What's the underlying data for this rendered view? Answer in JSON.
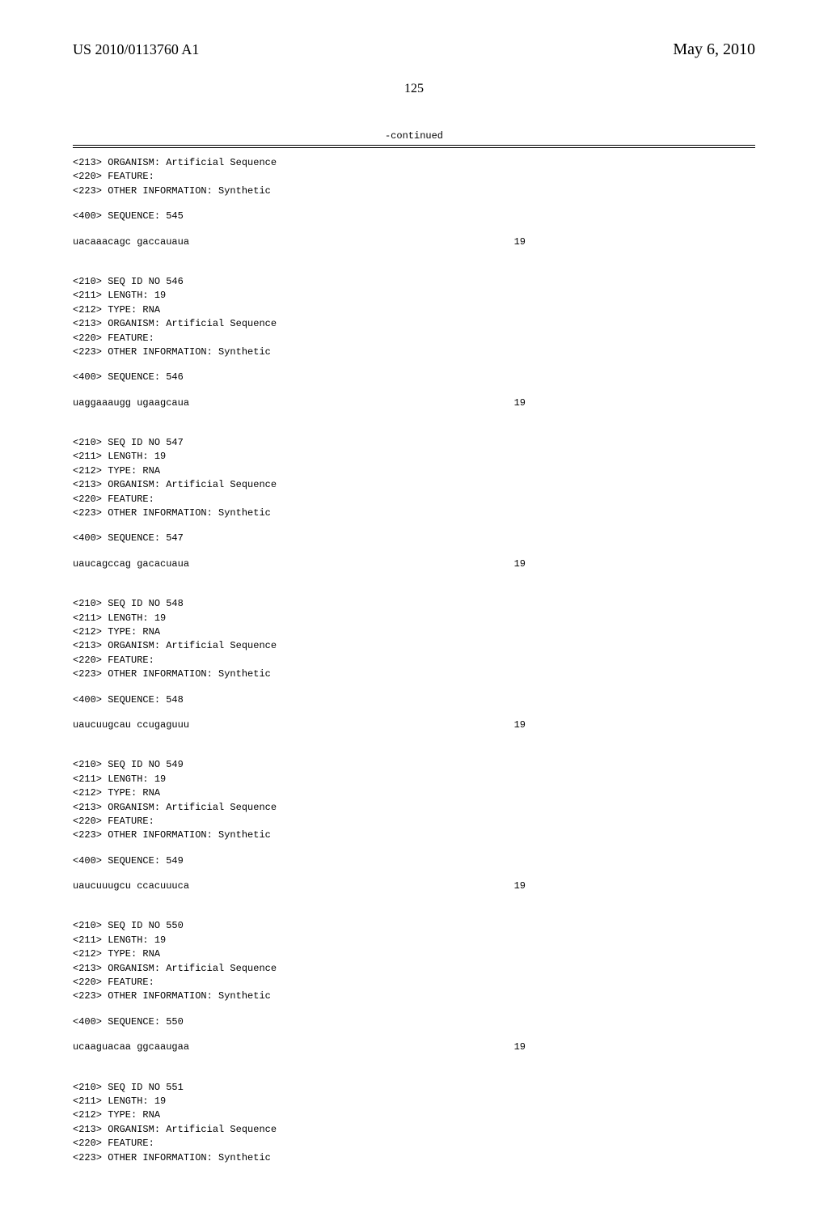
{
  "header": {
    "publication_number": "US 2010/0113760 A1",
    "publication_date": "May 6, 2010"
  },
  "page_number": "125",
  "continued_label": "-continued",
  "entries": [
    {
      "prefix_meta": [
        "<213> ORGANISM: Artificial Sequence",
        "<220> FEATURE:",
        "<223> OTHER INFORMATION: Synthetic"
      ],
      "seq_400": "<400> SEQUENCE: 545",
      "sequence": "uacaaacagc gaccauaua",
      "seq_len": "19"
    },
    {
      "meta": [
        "<210> SEQ ID NO 546",
        "<211> LENGTH: 19",
        "<212> TYPE: RNA",
        "<213> ORGANISM: Artificial Sequence",
        "<220> FEATURE:",
        "<223> OTHER INFORMATION: Synthetic"
      ],
      "seq_400": "<400> SEQUENCE: 546",
      "sequence": "uaggaaaugg ugaagcaua",
      "seq_len": "19"
    },
    {
      "meta": [
        "<210> SEQ ID NO 547",
        "<211> LENGTH: 19",
        "<212> TYPE: RNA",
        "<213> ORGANISM: Artificial Sequence",
        "<220> FEATURE:",
        "<223> OTHER INFORMATION: Synthetic"
      ],
      "seq_400": "<400> SEQUENCE: 547",
      "sequence": "uaucagccag gacacuaua",
      "seq_len": "19"
    },
    {
      "meta": [
        "<210> SEQ ID NO 548",
        "<211> LENGTH: 19",
        "<212> TYPE: RNA",
        "<213> ORGANISM: Artificial Sequence",
        "<220> FEATURE:",
        "<223> OTHER INFORMATION: Synthetic"
      ],
      "seq_400": "<400> SEQUENCE: 548",
      "sequence": "uaucuugcau ccugaguuu",
      "seq_len": "19"
    },
    {
      "meta": [
        "<210> SEQ ID NO 549",
        "<211> LENGTH: 19",
        "<212> TYPE: RNA",
        "<213> ORGANISM: Artificial Sequence",
        "<220> FEATURE:",
        "<223> OTHER INFORMATION: Synthetic"
      ],
      "seq_400": "<400> SEQUENCE: 549",
      "sequence": "uaucuuugcu ccacuuuca",
      "seq_len": "19"
    },
    {
      "meta": [
        "<210> SEQ ID NO 550",
        "<211> LENGTH: 19",
        "<212> TYPE: RNA",
        "<213> ORGANISM: Artificial Sequence",
        "<220> FEATURE:",
        "<223> OTHER INFORMATION: Synthetic"
      ],
      "seq_400": "<400> SEQUENCE: 550",
      "sequence": "ucaaguacaa ggcaaugaa",
      "seq_len": "19"
    },
    {
      "meta": [
        "<210> SEQ ID NO 551",
        "<211> LENGTH: 19",
        "<212> TYPE: RNA",
        "<213> ORGANISM: Artificial Sequence",
        "<220> FEATURE:",
        "<223> OTHER INFORMATION: Synthetic"
      ]
    }
  ]
}
